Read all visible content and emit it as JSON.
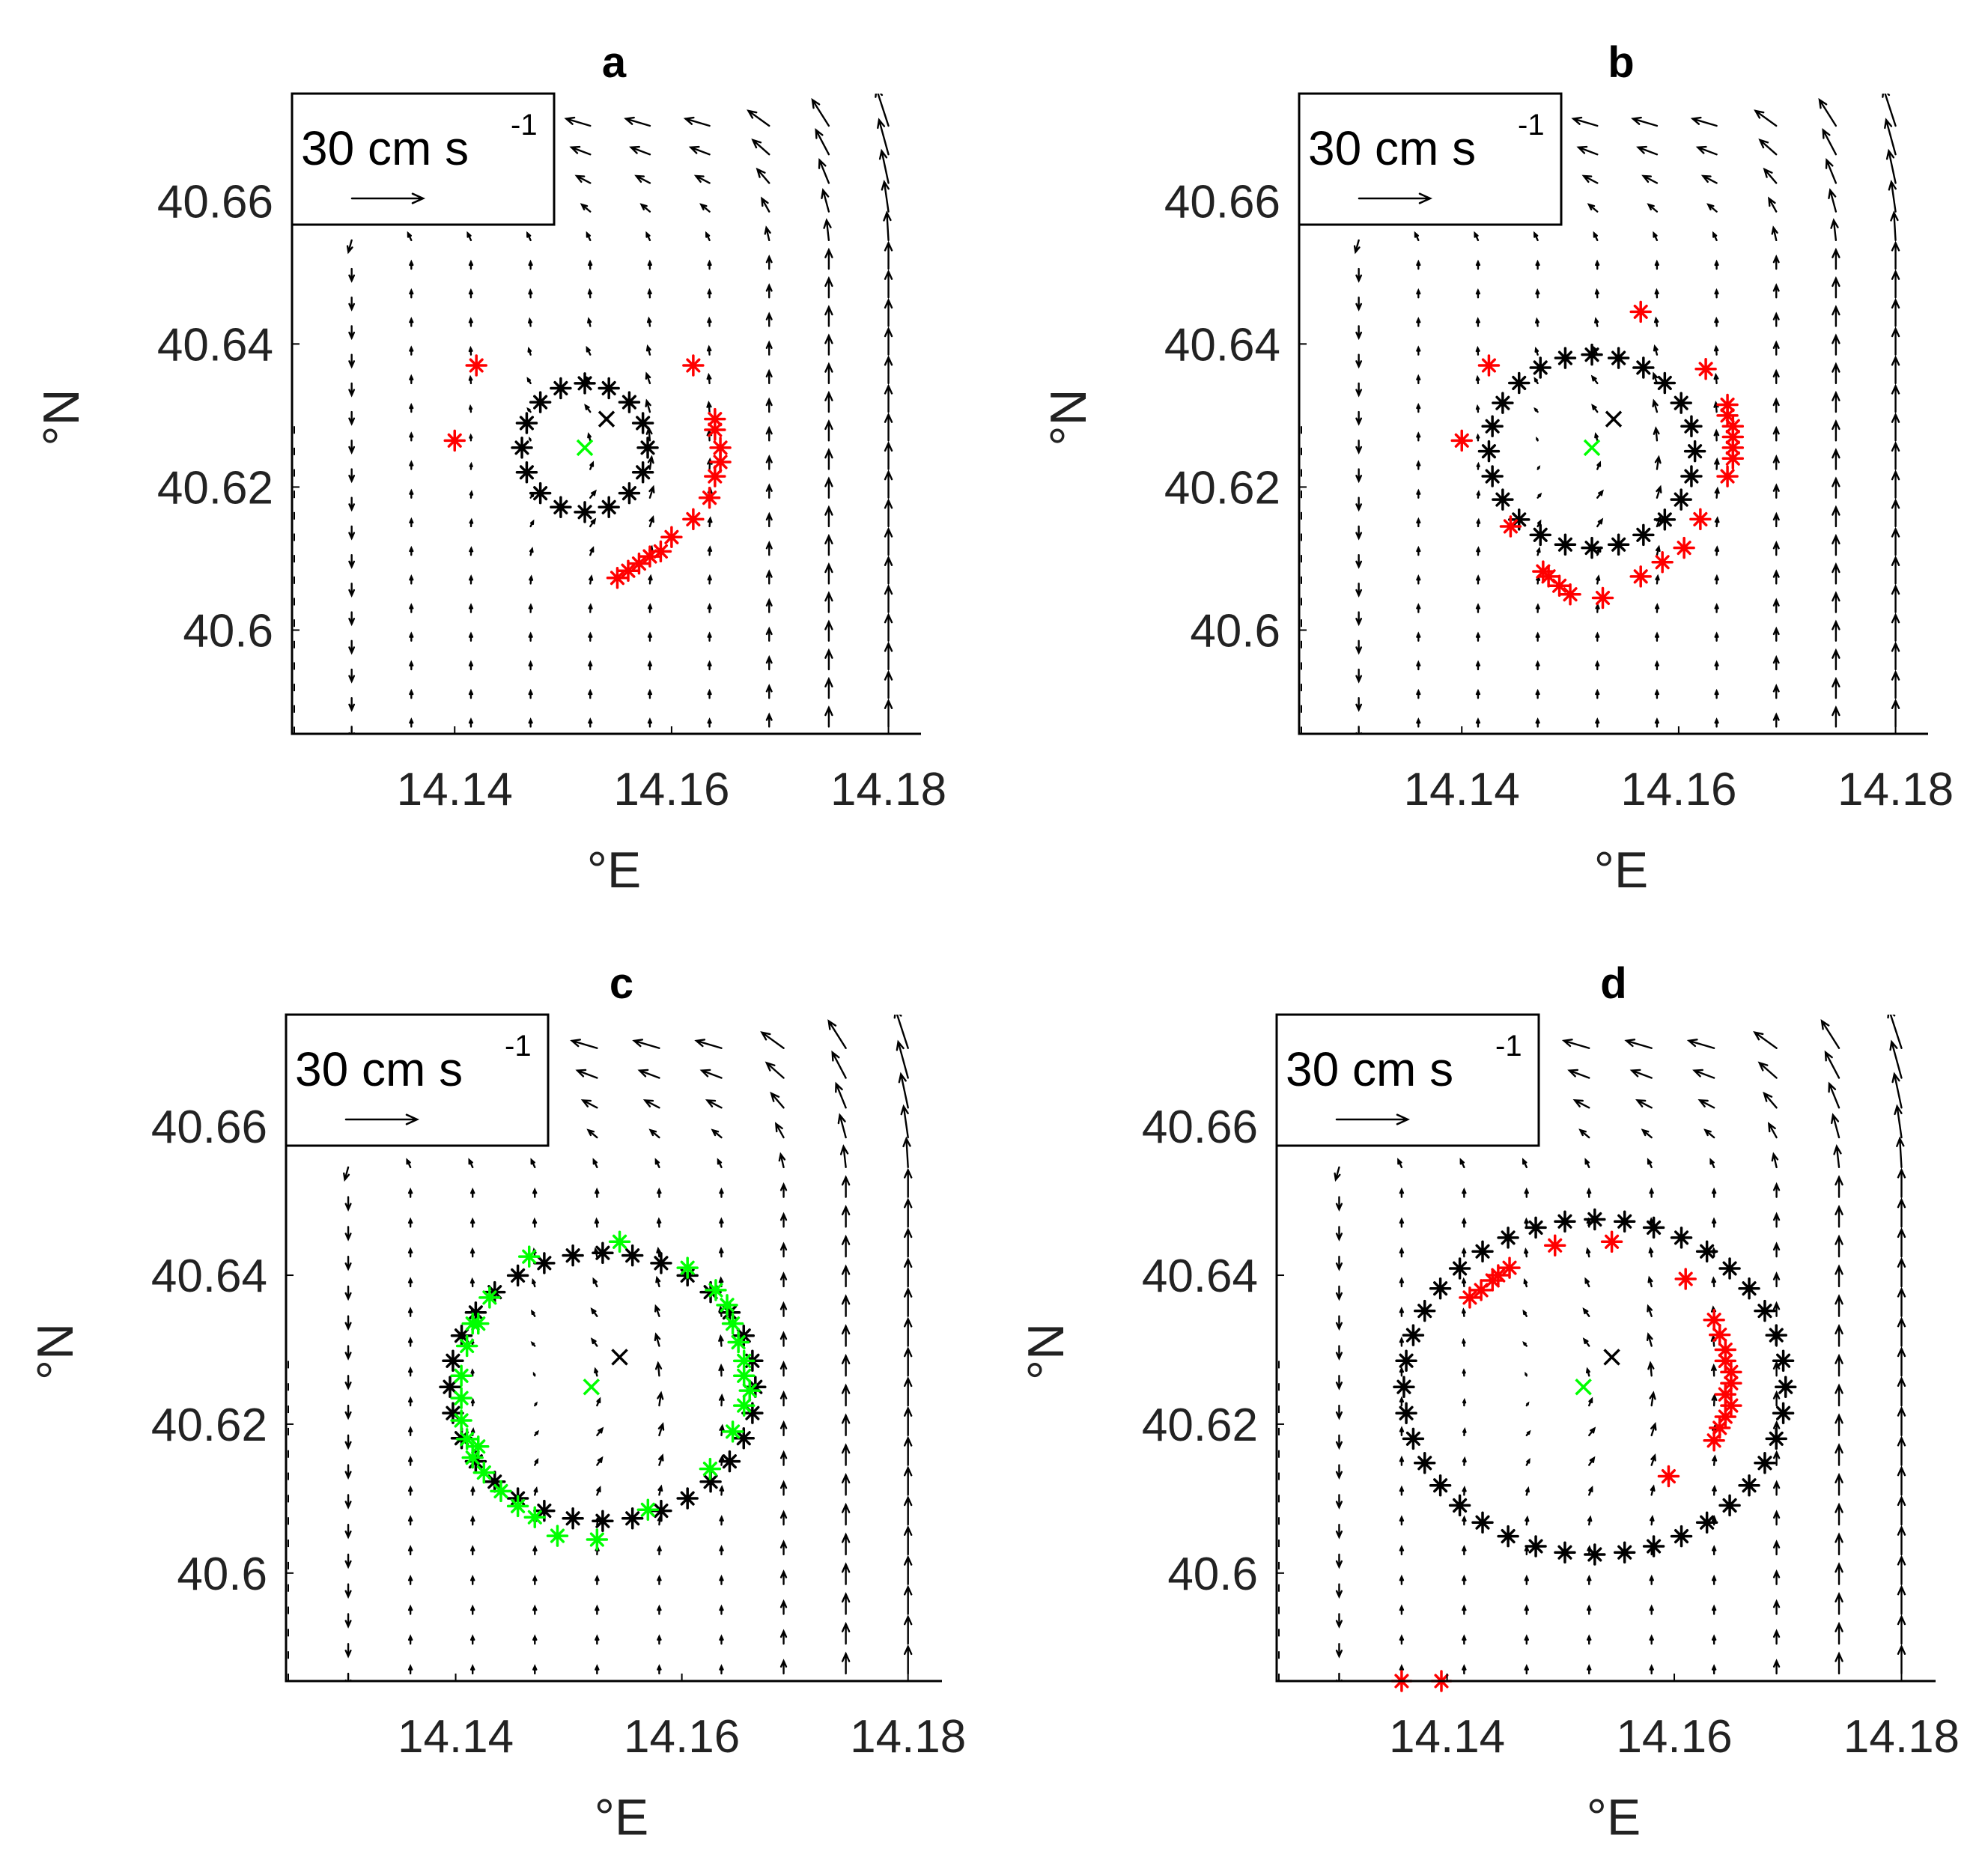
{
  "figure": {
    "scale_label": "30 cm s",
    "scale_exponent": "-1",
    "scale_speed_cm_s": 30,
    "colors": {
      "black": "#000000",
      "red": "#ff0000",
      "green": "#00ff00",
      "vector": "#000000"
    }
  },
  "chart_data": [
    {
      "type": "scatter",
      "title": "a",
      "xlabel": "°E",
      "ylabel": "°N",
      "xlim": [
        14.125,
        14.183
      ],
      "ylim": [
        40.5855,
        40.675
      ],
      "xticks": [
        14.14,
        14.16,
        14.18
      ],
      "xtick_labels": [
        "14.14",
        "14.16",
        "14.18"
      ],
      "yticks": [
        40.6,
        40.62,
        40.64,
        40.66
      ],
      "ytick_labels": [
        "40.6",
        "40.62",
        "40.64",
        "40.66"
      ],
      "ring": {
        "cx": 14.152,
        "cy": 40.6255,
        "rx": 0.0058,
        "ry": 0.009,
        "n": 16
      },
      "center_black": [
        14.154,
        40.6295
      ],
      "center_green": [
        14.152,
        40.6255
      ],
      "red_points": [
        [
          14.142,
          40.637
        ],
        [
          14.14,
          40.6265
        ],
        [
          14.162,
          40.637
        ],
        [
          14.164,
          40.6295
        ],
        [
          14.164,
          40.628
        ],
        [
          14.1645,
          40.6255
        ],
        [
          14.1645,
          40.6235
        ],
        [
          14.164,
          40.6215
        ],
        [
          14.1635,
          40.6185
        ],
        [
          14.162,
          40.6155
        ],
        [
          14.16,
          40.613
        ],
        [
          14.159,
          40.611
        ],
        [
          14.158,
          40.6103
        ],
        [
          14.157,
          40.6093
        ],
        [
          14.156,
          40.6083
        ],
        [
          14.155,
          40.6073
        ]
      ],
      "green_points": []
    },
    {
      "type": "scatter",
      "title": "b",
      "xlabel": "°E",
      "ylabel": "°N",
      "xlim": [
        14.125,
        14.183
      ],
      "ylim": [
        40.5855,
        40.675
      ],
      "xticks": [
        14.14,
        14.16,
        14.18
      ],
      "xtick_labels": [
        "14.14",
        "14.16",
        "14.18"
      ],
      "yticks": [
        40.6,
        40.62,
        40.64,
        40.66
      ],
      "ytick_labels": [
        "40.6",
        "40.62",
        "40.64",
        "40.66"
      ],
      "ring": {
        "cx": 14.152,
        "cy": 40.625,
        "rx": 0.0095,
        "ry": 0.0135,
        "n": 24
      },
      "center_black": [
        14.154,
        40.6295
      ],
      "center_green": [
        14.152,
        40.6255
      ],
      "red_points": [
        [
          14.1425,
          40.637
        ],
        [
          14.14,
          40.6265
        ],
        [
          14.1445,
          40.6145
        ],
        [
          14.1565,
          40.6445
        ],
        [
          14.1625,
          40.6365
        ],
        [
          14.1645,
          40.6315
        ],
        [
          14.1645,
          40.63
        ],
        [
          14.165,
          40.6285
        ],
        [
          14.165,
          40.627
        ],
        [
          14.165,
          40.6255
        ],
        [
          14.165,
          40.624
        ],
        [
          14.1645,
          40.6215
        ],
        [
          14.162,
          40.6155
        ],
        [
          14.1605,
          40.6115
        ],
        [
          14.1585,
          40.6095
        ],
        [
          14.1565,
          40.6075
        ],
        [
          14.153,
          40.6045
        ],
        [
          14.15,
          40.605
        ],
        [
          14.149,
          40.6062
        ],
        [
          14.148,
          40.6075
        ],
        [
          14.1475,
          40.6082
        ]
      ],
      "green_points": []
    },
    {
      "type": "scatter",
      "title": "c",
      "xlabel": "°E",
      "ylabel": "°N",
      "xlim": [
        14.125,
        14.183
      ],
      "ylim": [
        40.5855,
        40.675
      ],
      "xticks": [
        14.14,
        14.16,
        14.18
      ],
      "xtick_labels": [
        "14.14",
        "14.16",
        "14.18"
      ],
      "yticks": [
        40.6,
        40.62,
        40.64,
        40.66
      ],
      "ytick_labels": [
        "40.6",
        "40.62",
        "40.64",
        "40.66"
      ],
      "ring": {
        "cx": 14.153,
        "cy": 40.625,
        "rx": 0.0135,
        "ry": 0.018,
        "n": 32
      },
      "center_black": [
        14.1545,
        40.629
      ],
      "center_green": [
        14.152,
        40.625
      ],
      "red_points": [],
      "green_points": [
        [
          14.1465,
          40.6425
        ],
        [
          14.1545,
          40.6445
        ],
        [
          14.1605,
          40.641
        ],
        [
          14.163,
          40.638
        ],
        [
          14.164,
          40.636
        ],
        [
          14.1645,
          40.6335
        ],
        [
          14.165,
          40.631
        ],
        [
          14.1655,
          40.6285
        ],
        [
          14.1655,
          40.6265
        ],
        [
          14.166,
          40.6245
        ],
        [
          14.1655,
          40.6225
        ],
        [
          14.1645,
          40.619
        ],
        [
          14.1625,
          40.614
        ],
        [
          14.157,
          40.6085
        ],
        [
          14.1525,
          40.6045
        ],
        [
          14.149,
          40.605
        ],
        [
          14.147,
          40.6075
        ],
        [
          14.1455,
          40.609
        ],
        [
          14.144,
          40.611
        ],
        [
          14.1425,
          40.6135
        ],
        [
          14.1415,
          40.6155
        ],
        [
          14.141,
          40.618
        ],
        [
          14.1405,
          40.6205
        ],
        [
          14.1405,
          40.6235
        ],
        [
          14.1405,
          40.6265
        ],
        [
          14.141,
          40.6305
        ],
        [
          14.142,
          40.6335
        ],
        [
          14.143,
          40.637
        ],
        [
          14.1415,
          40.6335
        ],
        [
          14.142,
          40.617
        ]
      ]
    },
    {
      "type": "scatter",
      "title": "d",
      "xlabel": "°E",
      "ylabel": "°N",
      "xlim": [
        14.125,
        14.183
      ],
      "ylim": [
        40.5855,
        40.675
      ],
      "xticks": [
        14.14,
        14.16,
        14.18
      ],
      "xtick_labels": [
        "14.14",
        "14.16",
        "14.18"
      ],
      "yticks": [
        40.6,
        40.62,
        40.64,
        40.66
      ],
      "ytick_labels": [
        "40.6",
        "40.62",
        "40.64",
        "40.66"
      ],
      "ring": {
        "cx": 14.153,
        "cy": 40.625,
        "rx": 0.0168,
        "ry": 0.0225,
        "n": 40
      },
      "center_black": [
        14.1545,
        40.629
      ],
      "center_green": [
        14.152,
        40.625
      ],
      "red_points": [
        [
          14.136,
          40.5855
        ],
        [
          14.1395,
          40.5855
        ],
        [
          14.142,
          40.637
        ],
        [
          14.143,
          40.638
        ],
        [
          14.144,
          40.6393
        ],
        [
          14.1445,
          40.64
        ],
        [
          14.1455,
          40.641
        ],
        [
          14.1495,
          40.644
        ],
        [
          14.1545,
          40.6445
        ],
        [
          14.161,
          40.6395
        ],
        [
          14.1635,
          40.634
        ],
        [
          14.164,
          40.632
        ],
        [
          14.1645,
          40.63
        ],
        [
          14.1645,
          40.6285
        ],
        [
          14.165,
          40.627
        ],
        [
          14.165,
          40.6255
        ],
        [
          14.1645,
          40.624
        ],
        [
          14.165,
          40.6225
        ],
        [
          14.1645,
          40.621
        ],
        [
          14.164,
          40.6195
        ],
        [
          14.1635,
          40.6178
        ],
        [
          14.1595,
          40.613
        ]
      ],
      "green_points": []
    }
  ]
}
